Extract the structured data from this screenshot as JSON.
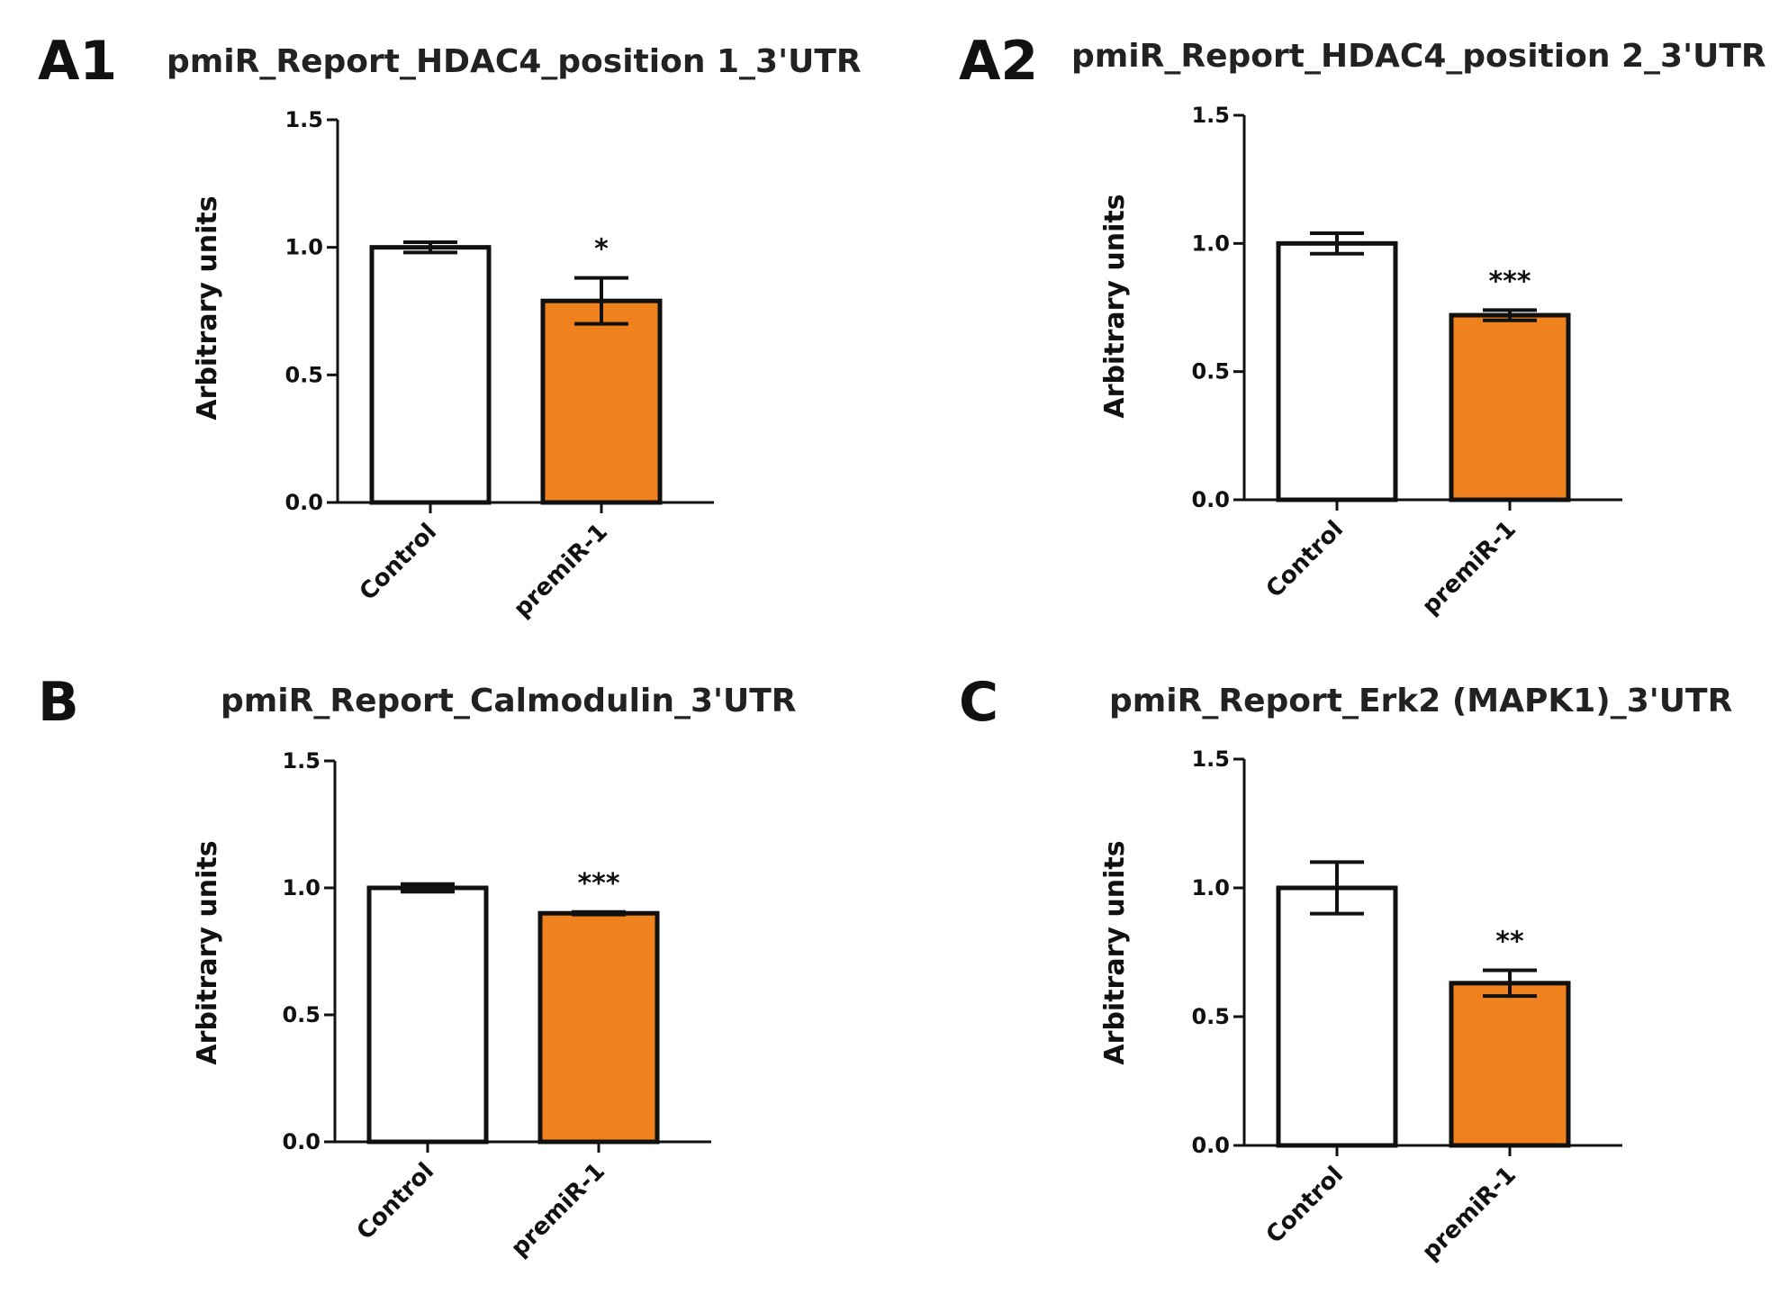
{
  "colors": {
    "control": "#ffffff",
    "treatment": "#f0821e",
    "stroke": "#111111"
  },
  "chart_data": [
    {
      "panel": "A1",
      "type": "bar",
      "title": "pmiR_Report_HDAC4_position 1_3'UTR",
      "ylabel": "Arbitrary units",
      "xlabel": "",
      "ylim": [
        0,
        1.5
      ],
      "yticks": [
        "0.0",
        "0.5",
        "1.0",
        "1.5"
      ],
      "categories": [
        "Control",
        "premiR-1"
      ],
      "values": [
        1.0,
        0.79
      ],
      "errors": [
        0.02,
        0.09
      ],
      "significance": [
        "",
        "*"
      ]
    },
    {
      "panel": "A2",
      "type": "bar",
      "title": "pmiR_Report_HDAC4_position 2_3'UTR",
      "ylabel": "Arbitrary units",
      "xlabel": "",
      "ylim": [
        0,
        1.5
      ],
      "yticks": [
        "0.0",
        "0.5",
        "1.0",
        "1.5"
      ],
      "categories": [
        "Control",
        "premiR-1"
      ],
      "values": [
        1.0,
        0.72
      ],
      "errors": [
        0.04,
        0.02
      ],
      "significance": [
        "",
        "***"
      ]
    },
    {
      "panel": "B",
      "type": "bar",
      "title": "pmiR_Report_Calmodulin_3'UTR",
      "ylabel": "Arbitrary units",
      "xlabel": "",
      "ylim": [
        0,
        1.5
      ],
      "yticks": [
        "0.0",
        "0.5",
        "1.0",
        "1.5"
      ],
      "categories": [
        "Control",
        "premiR-1"
      ],
      "values": [
        1.0,
        0.9
      ],
      "errors": [
        0.015,
        0.005
      ],
      "significance": [
        "",
        "***"
      ]
    },
    {
      "panel": "C",
      "type": "bar",
      "title": "pmiR_Report_Erk2 (MAPK1)_3'UTR",
      "ylabel": "Arbitrary units",
      "xlabel": "",
      "ylim": [
        0,
        1.5
      ],
      "yticks": [
        "0.0",
        "0.5",
        "1.0",
        "1.5"
      ],
      "categories": [
        "Control",
        "premiR-1"
      ],
      "values": [
        1.0,
        0.63
      ],
      "errors": [
        0.1,
        0.05
      ],
      "significance": [
        "",
        "**"
      ]
    }
  ]
}
